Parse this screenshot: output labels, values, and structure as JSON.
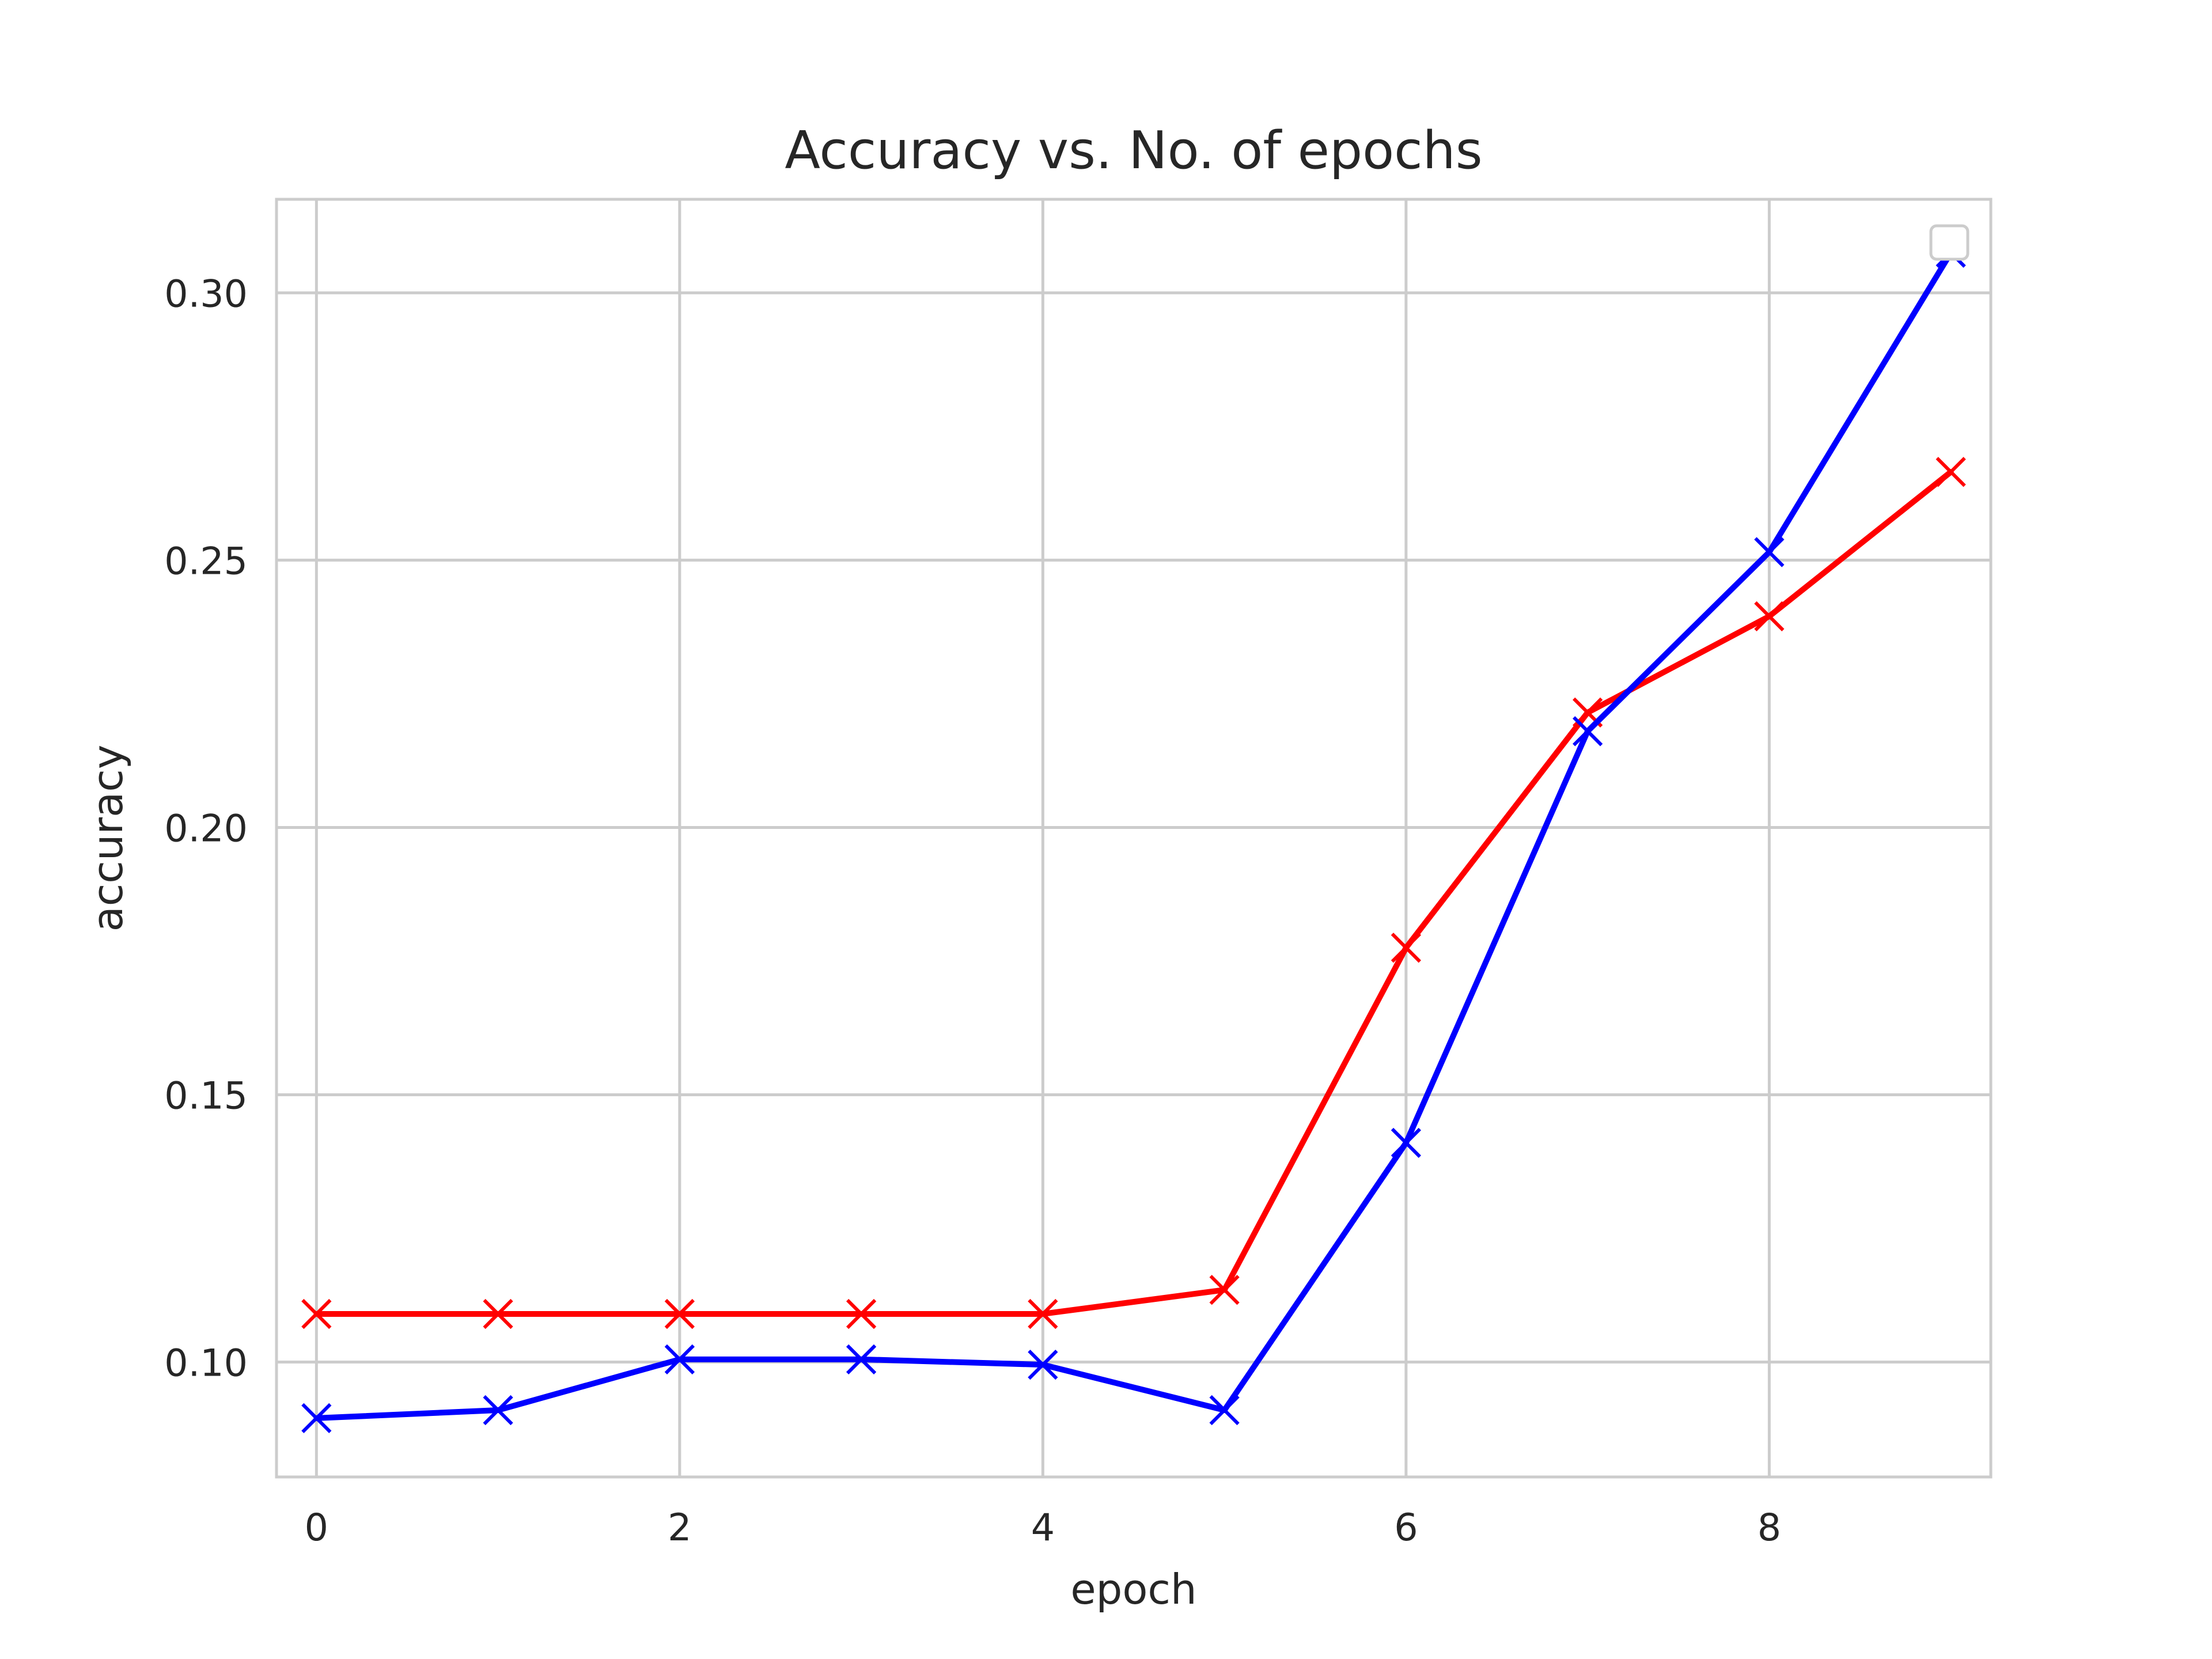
{
  "chart_data": {
    "type": "line",
    "title": "Accuracy vs. No. of epochs",
    "xlabel": "epoch",
    "ylabel": "accuracy",
    "xlim": [
      -0.22,
      9.22
    ],
    "ylim": [
      0.0785,
      0.3175
    ],
    "x_ticks": [
      0,
      2,
      4,
      6,
      8
    ],
    "y_ticks": [
      0.1,
      0.15,
      0.2,
      0.25,
      0.3
    ],
    "x_tick_labels": [
      "0",
      "2",
      "4",
      "6",
      "8"
    ],
    "y_tick_labels": [
      "0.10",
      "0.15",
      "0.20",
      "0.25",
      "0.30"
    ],
    "grid": true,
    "legend": "top-right",
    "marker": "x",
    "x": [
      0,
      1,
      2,
      3,
      4,
      5,
      6,
      7,
      8,
      9
    ],
    "series": [
      {
        "color": "#ff0000",
        "values": [
          0.109,
          0.109,
          0.109,
          0.109,
          0.109,
          0.1135,
          0.1775,
          0.2215,
          0.2395,
          0.2665
        ]
      },
      {
        "color": "#0000ff",
        "values": [
          0.0895,
          0.091,
          0.1005,
          0.1005,
          0.0995,
          0.091,
          0.141,
          0.218,
          0.2515,
          0.3075
        ]
      }
    ]
  }
}
